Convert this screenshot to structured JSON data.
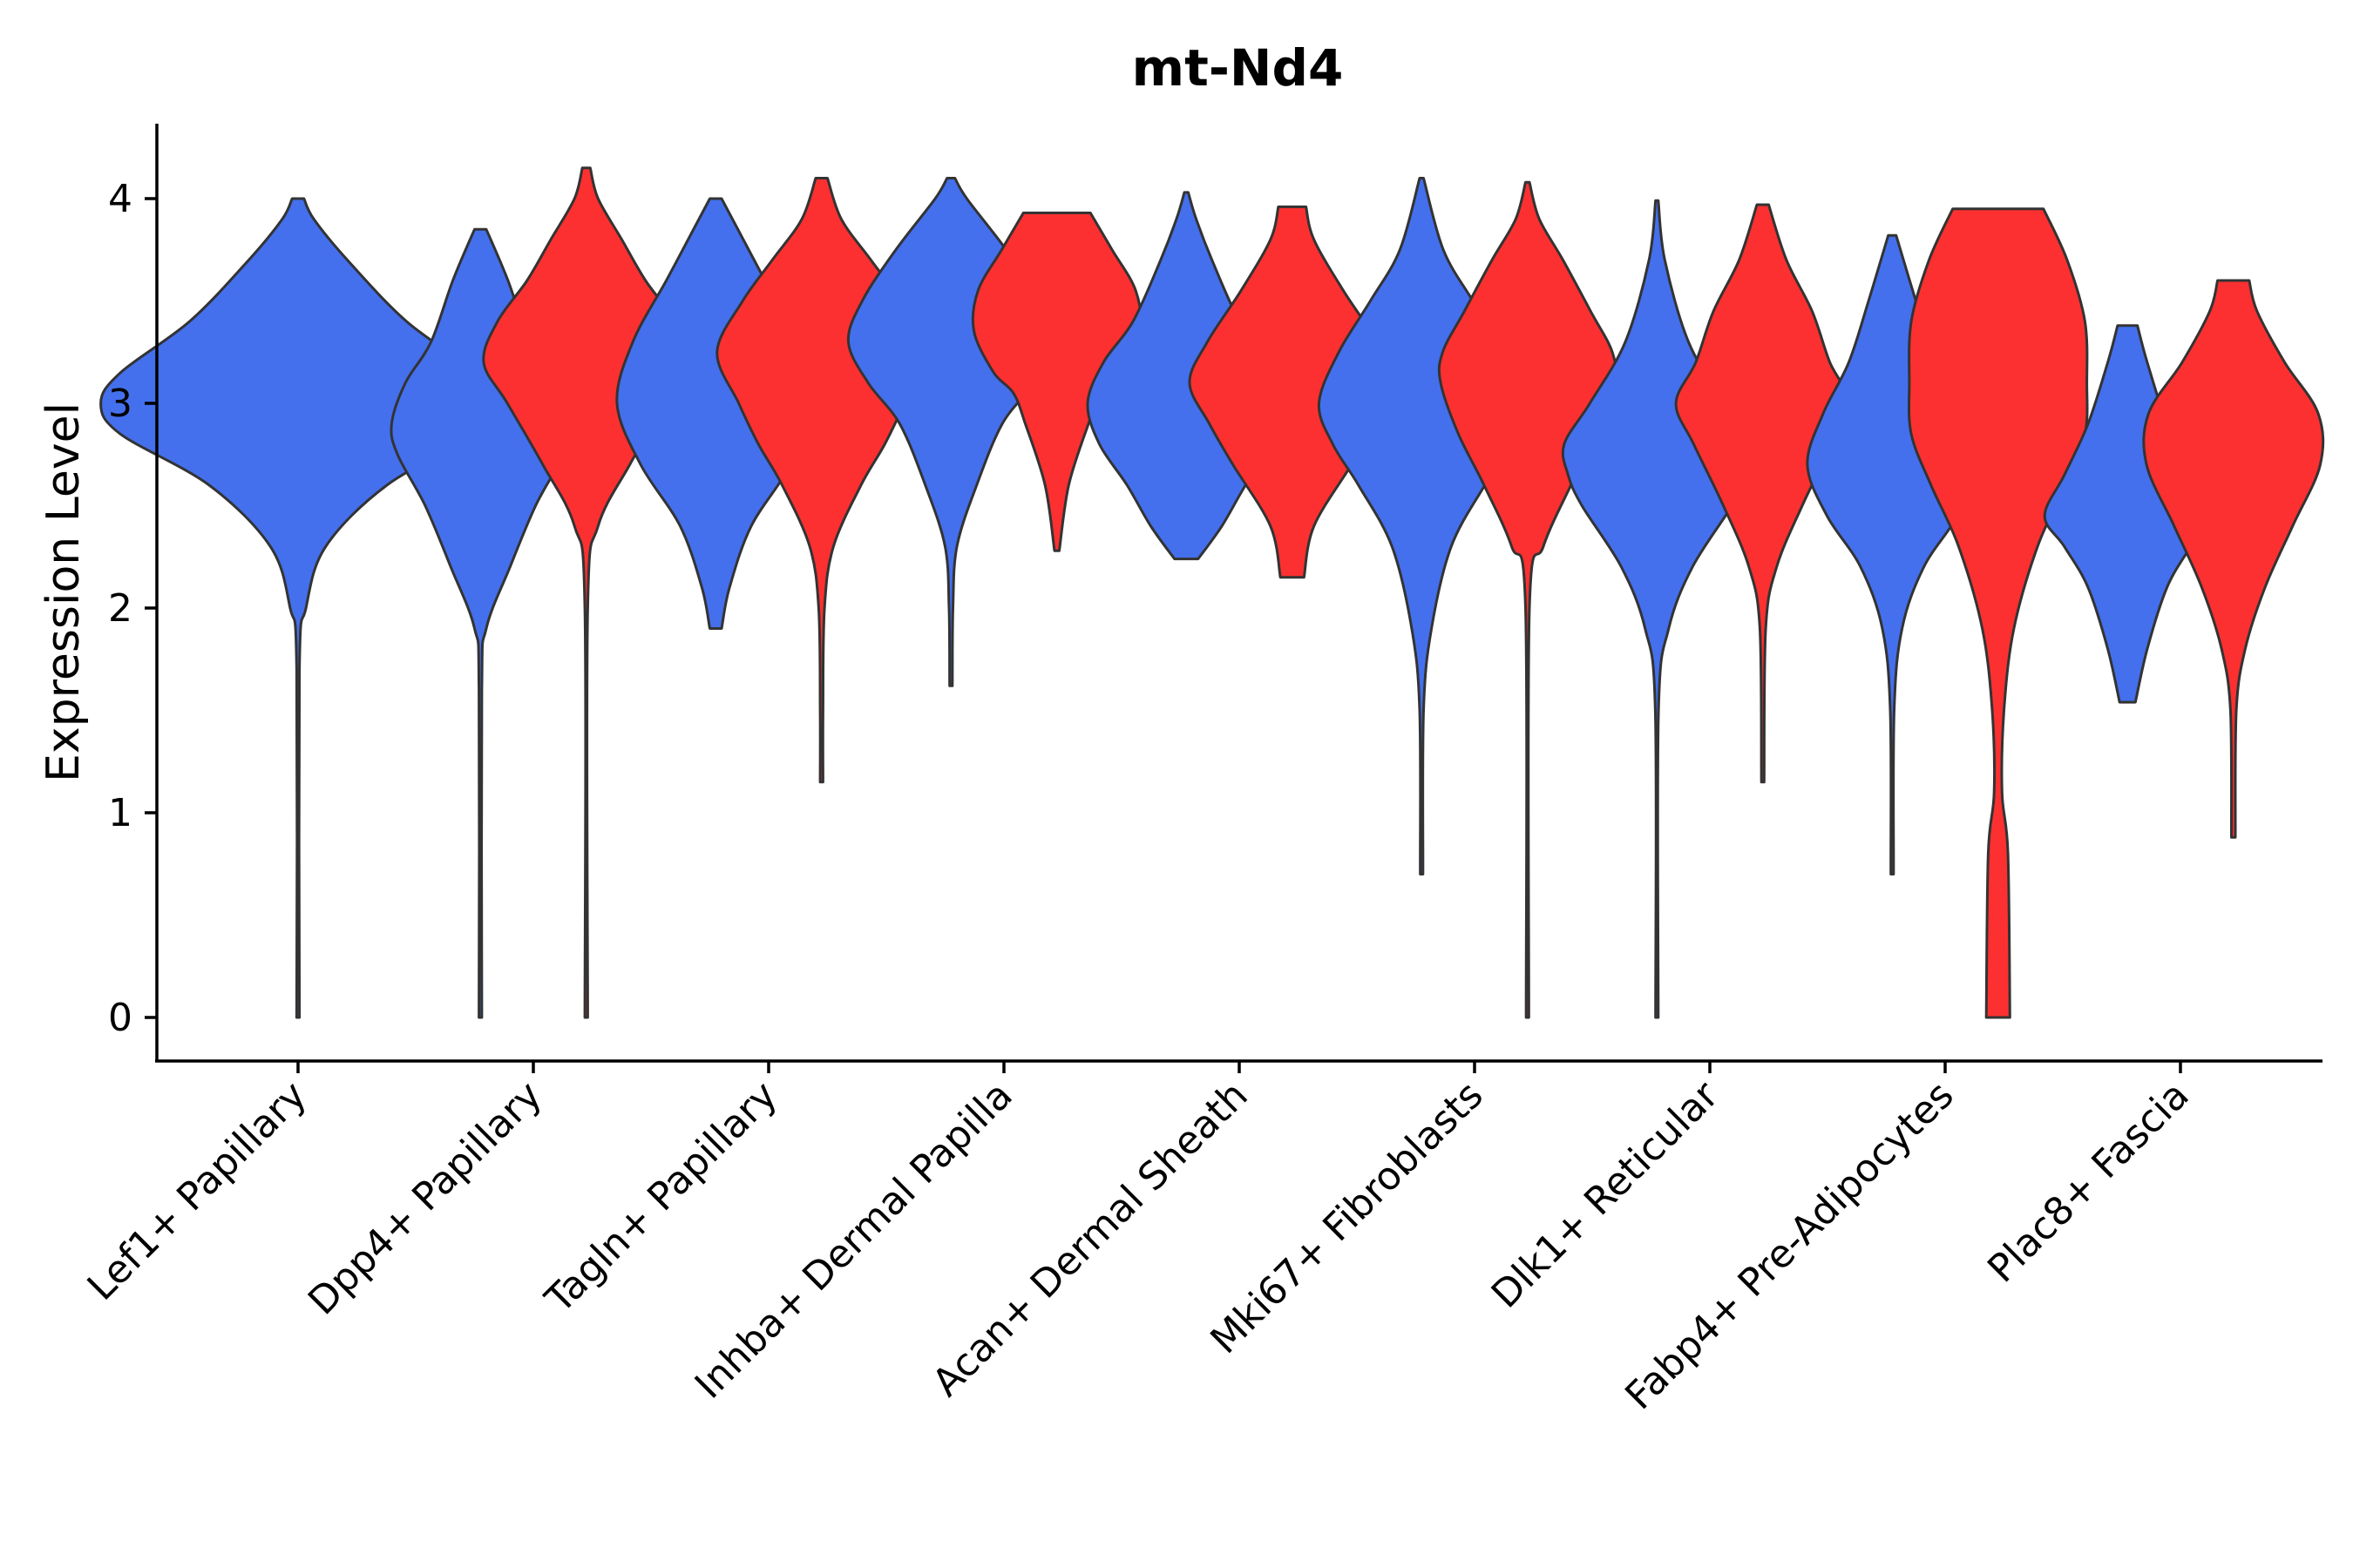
{
  "chart_data": {
    "type": "violin",
    "title": "mt-Nd4",
    "xlabel": "",
    "ylabel": "Expression Level",
    "ylim": [
      -0.2,
      4.35
    ],
    "yticks": [
      0,
      1,
      2,
      3,
      4
    ],
    "categories": [
      "Lef1+ Papillary",
      "Dpp4+ Papillary",
      "Tagln+ Papillary",
      "Inhba+ Dermal Papilla",
      "Acan+ Dermal Sheath",
      "Mki67+ Fibroblasts",
      "Dlk1+ Reticular",
      "Fabp4+ Pre-Adipocytes",
      "Plac8+ Fascia"
    ],
    "colors": {
      "blue": "#4470ee",
      "red": "#fc3030"
    },
    "violins": [
      {
        "category_index": 0,
        "color": "blue",
        "x_offset": 0,
        "profile": [
          [
            0.0,
            0.03
          ],
          [
            1.7,
            0.05
          ],
          [
            2.0,
            0.4
          ],
          [
            2.3,
            1.4
          ],
          [
            2.6,
            4.5
          ],
          [
            2.85,
            9
          ],
          [
            3.0,
            10
          ],
          [
            3.15,
            9
          ],
          [
            3.4,
            5.5
          ],
          [
            3.7,
            2.5
          ],
          [
            3.9,
            0.8
          ],
          [
            4.0,
            0.3
          ]
        ]
      },
      {
        "category_index": 1,
        "color": "blue",
        "x_offset": -0.225,
        "profile": [
          [
            0.0,
            0.03
          ],
          [
            1.6,
            0.05
          ],
          [
            1.9,
            0.3
          ],
          [
            2.2,
            1.5
          ],
          [
            2.5,
            2.8
          ],
          [
            2.75,
            4.2
          ],
          [
            2.9,
            4.5
          ],
          [
            3.1,
            3.8
          ],
          [
            3.3,
            2.5
          ],
          [
            3.6,
            1.4
          ],
          [
            3.85,
            0.3
          ]
        ]
      },
      {
        "category_index": 1,
        "color": "red",
        "x_offset": 0.225,
        "profile": [
          [
            0.0,
            0.03
          ],
          [
            2.0,
            0.06
          ],
          [
            2.4,
            0.6
          ],
          [
            2.7,
            2.2
          ],
          [
            3.0,
            4.0
          ],
          [
            3.2,
            5.2
          ],
          [
            3.4,
            4.5
          ],
          [
            3.6,
            3.0
          ],
          [
            3.8,
            1.8
          ],
          [
            4.0,
            0.6
          ],
          [
            4.15,
            0.2
          ]
        ]
      },
      {
        "category_index": 2,
        "color": "blue",
        "x_offset": -0.225,
        "profile": [
          [
            1.9,
            0.3
          ],
          [
            2.1,
            0.7
          ],
          [
            2.4,
            1.8
          ],
          [
            2.7,
            3.8
          ],
          [
            3.0,
            5.0
          ],
          [
            3.3,
            4.2
          ],
          [
            3.6,
            2.5
          ],
          [
            3.8,
            1.4
          ],
          [
            4.0,
            0.3
          ]
        ]
      },
      {
        "category_index": 2,
        "color": "red",
        "x_offset": 0.225,
        "profile": [
          [
            1.15,
            0.03
          ],
          [
            1.5,
            0.06
          ],
          [
            2.0,
            0.15
          ],
          [
            2.3,
            0.6
          ],
          [
            2.6,
            2.0
          ],
          [
            2.8,
            3.2
          ],
          [
            3.0,
            4.2
          ],
          [
            3.25,
            5.3
          ],
          [
            3.5,
            4.0
          ],
          [
            3.7,
            2.5
          ],
          [
            3.9,
            1.0
          ],
          [
            4.1,
            0.3
          ]
        ]
      },
      {
        "category_index": 3,
        "color": "blue",
        "x_offset": -0.225,
        "profile": [
          [
            1.62,
            0.05
          ],
          [
            2.0,
            0.1
          ],
          [
            2.3,
            0.3
          ],
          [
            2.6,
            1.3
          ],
          [
            2.9,
            2.6
          ],
          [
            3.1,
            4.2
          ],
          [
            3.3,
            5.2
          ],
          [
            3.5,
            4.5
          ],
          [
            3.75,
            2.8
          ],
          [
            4.0,
            0.8
          ],
          [
            4.1,
            0.2
          ]
        ]
      },
      {
        "category_index": 3,
        "color": "red",
        "x_offset": 0.225,
        "profile": [
          [
            2.28,
            0.12
          ],
          [
            2.6,
            0.6
          ],
          [
            2.9,
            1.6
          ],
          [
            3.05,
            2.2
          ],
          [
            3.15,
            3.2
          ],
          [
            3.35,
            4.2
          ],
          [
            3.55,
            4.0
          ],
          [
            3.75,
            2.8
          ],
          [
            3.93,
            1.7
          ]
        ]
      },
      {
        "category_index": 4,
        "color": "blue",
        "x_offset": -0.225,
        "profile": [
          [
            2.24,
            0.6
          ],
          [
            2.4,
            1.8
          ],
          [
            2.6,
            3.0
          ],
          [
            2.8,
            4.4
          ],
          [
            3.0,
            5.0
          ],
          [
            3.2,
            4.2
          ],
          [
            3.4,
            2.7
          ],
          [
            3.7,
            1.3
          ],
          [
            3.9,
            0.5
          ],
          [
            4.03,
            0.1
          ]
        ]
      },
      {
        "category_index": 4,
        "color": "red",
        "x_offset": 0.225,
        "profile": [
          [
            2.15,
            0.6
          ],
          [
            2.4,
            1.1
          ],
          [
            2.7,
            3.0
          ],
          [
            2.9,
            4.2
          ],
          [
            3.1,
            5.2
          ],
          [
            3.3,
            4.3
          ],
          [
            3.55,
            2.6
          ],
          [
            3.8,
            1.1
          ],
          [
            3.96,
            0.7
          ]
        ]
      },
      {
        "category_index": 5,
        "color": "blue",
        "x_offset": -0.225,
        "profile": [
          [
            0.7,
            0.05
          ],
          [
            1.5,
            0.1
          ],
          [
            1.9,
            0.5
          ],
          [
            2.3,
            1.5
          ],
          [
            2.6,
            3.2
          ],
          [
            2.8,
            4.5
          ],
          [
            3.0,
            5.2
          ],
          [
            3.25,
            4.2
          ],
          [
            3.5,
            2.6
          ],
          [
            3.75,
            1.1
          ],
          [
            4.1,
            0.1
          ]
        ]
      },
      {
        "category_index": 5,
        "color": "red",
        "x_offset": 0.225,
        "profile": [
          [
            0.0,
            0.04
          ],
          [
            2.0,
            0.1
          ],
          [
            2.3,
            0.8
          ],
          [
            2.6,
            2.2
          ],
          [
            2.85,
            3.5
          ],
          [
            3.1,
            4.4
          ],
          [
            3.25,
            4.3
          ],
          [
            3.45,
            3.2
          ],
          [
            3.7,
            1.8
          ],
          [
            3.9,
            0.6
          ],
          [
            4.08,
            0.1
          ]
        ]
      },
      {
        "category_index": 6,
        "color": "blue",
        "x_offset": -0.225,
        "profile": [
          [
            0.0,
            0.03
          ],
          [
            1.5,
            0.08
          ],
          [
            1.9,
            0.6
          ],
          [
            2.2,
            1.8
          ],
          [
            2.5,
            3.8
          ],
          [
            2.65,
            4.5
          ],
          [
            2.8,
            4.7
          ],
          [
            3.0,
            3.4
          ],
          [
            3.3,
            1.6
          ],
          [
            3.7,
            0.4
          ],
          [
            3.99,
            0.05
          ]
        ]
      },
      {
        "category_index": 6,
        "color": "red",
        "x_offset": 0.225,
        "profile": [
          [
            1.15,
            0.06
          ],
          [
            1.9,
            0.15
          ],
          [
            2.2,
            0.7
          ],
          [
            2.5,
            2.0
          ],
          [
            2.8,
            3.5
          ],
          [
            3.0,
            4.4
          ],
          [
            3.2,
            3.4
          ],
          [
            3.45,
            2.5
          ],
          [
            3.7,
            1.2
          ],
          [
            3.97,
            0.3
          ]
        ]
      },
      {
        "category_index": 7,
        "color": "blue",
        "x_offset": -0.225,
        "profile": [
          [
            0.7,
            0.05
          ],
          [
            1.5,
            0.1
          ],
          [
            1.9,
            0.5
          ],
          [
            2.2,
            1.6
          ],
          [
            2.45,
            3.3
          ],
          [
            2.7,
            4.3
          ],
          [
            2.95,
            3.5
          ],
          [
            3.2,
            2.2
          ],
          [
            3.5,
            1.2
          ],
          [
            3.82,
            0.2
          ]
        ]
      },
      {
        "category_index": 7,
        "color": "red",
        "x_offset": 0.225,
        "profile": [
          [
            0.0,
            0.6
          ],
          [
            0.8,
            0.5
          ],
          [
            1.1,
            0.2
          ],
          [
            1.5,
            0.3
          ],
          [
            1.9,
            0.8
          ],
          [
            2.3,
            2.0
          ],
          [
            2.6,
            3.4
          ],
          [
            2.85,
            4.4
          ],
          [
            3.1,
            4.5
          ],
          [
            3.4,
            4.4
          ],
          [
            3.7,
            3.5
          ],
          [
            3.95,
            2.3
          ]
        ]
      },
      {
        "category_index": 8,
        "color": "blue",
        "x_offset": -0.225,
        "profile": [
          [
            1.54,
            0.4
          ],
          [
            1.8,
            1.0
          ],
          [
            2.1,
            2.0
          ],
          [
            2.3,
            3.2
          ],
          [
            2.45,
            4.2
          ],
          [
            2.65,
            3.2
          ],
          [
            2.9,
            2.0
          ],
          [
            3.2,
            1.0
          ],
          [
            3.38,
            0.5
          ]
        ]
      },
      {
        "category_index": 8,
        "color": "red",
        "x_offset": 0.225,
        "profile": [
          [
            0.88,
            0.1
          ],
          [
            1.5,
            0.15
          ],
          [
            1.8,
            0.6
          ],
          [
            2.1,
            1.6
          ],
          [
            2.4,
            3.0
          ],
          [
            2.7,
            4.4
          ],
          [
            2.95,
            4.3
          ],
          [
            3.2,
            2.6
          ],
          [
            3.45,
            1.2
          ],
          [
            3.6,
            0.8
          ]
        ]
      }
    ]
  }
}
